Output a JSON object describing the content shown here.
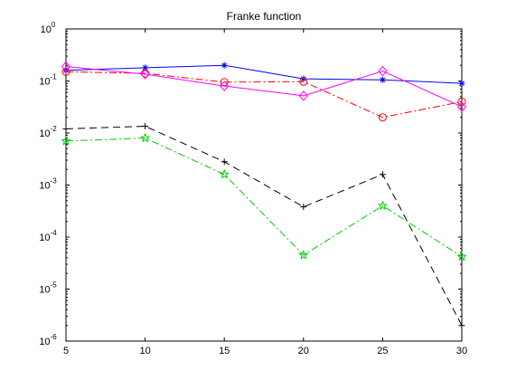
{
  "chart_data": {
    "type": "line",
    "title": "Franke function",
    "xlabel": "",
    "ylabel": "",
    "x": [
      5,
      10,
      15,
      20,
      25,
      30
    ],
    "xlim": [
      5,
      30
    ],
    "ylim": [
      1e-06,
      1
    ],
    "yscale": "log",
    "grid": false,
    "xticks": [
      "5",
      "10",
      "15",
      "20",
      "25",
      "30"
    ],
    "yticks": [
      {
        "value": 1,
        "base": "10",
        "exp": "0"
      },
      {
        "value": 0.1,
        "base": "10",
        "exp": "-1"
      },
      {
        "value": 0.01,
        "base": "10",
        "exp": "-2"
      },
      {
        "value": 0.001,
        "base": "10",
        "exp": "-3"
      },
      {
        "value": 0.0001,
        "base": "10",
        "exp": "-4"
      },
      {
        "value": 1e-05,
        "base": "10",
        "exp": "-5"
      },
      {
        "value": 1e-06,
        "base": "10",
        "exp": "-6"
      }
    ],
    "series": [
      {
        "color": "#0000ff",
        "dash": "",
        "marker": "asterisk",
        "values": [
          0.16,
          0.18,
          0.2,
          0.11,
          0.105,
          0.09
        ]
      },
      {
        "color": "#ff0000",
        "dash": "8,3,2,3",
        "marker": "circle",
        "values": [
          0.15,
          0.14,
          0.095,
          0.097,
          0.02,
          0.04
        ]
      },
      {
        "color": "#ff00ff",
        "dash": "",
        "marker": "diamond",
        "values": [
          0.19,
          0.135,
          0.08,
          0.052,
          0.155,
          0.032
        ]
      },
      {
        "color": "#000000",
        "dash": "8,5",
        "marker": "plus",
        "values": [
          0.012,
          0.0135,
          0.0028,
          0.00038,
          0.0016,
          2e-06
        ]
      },
      {
        "color": "#00cc00",
        "dash": "8,3,2,3",
        "marker": "star",
        "values": [
          0.007,
          0.008,
          0.0016,
          4.5e-05,
          0.0004,
          4.2e-05
        ]
      }
    ]
  }
}
